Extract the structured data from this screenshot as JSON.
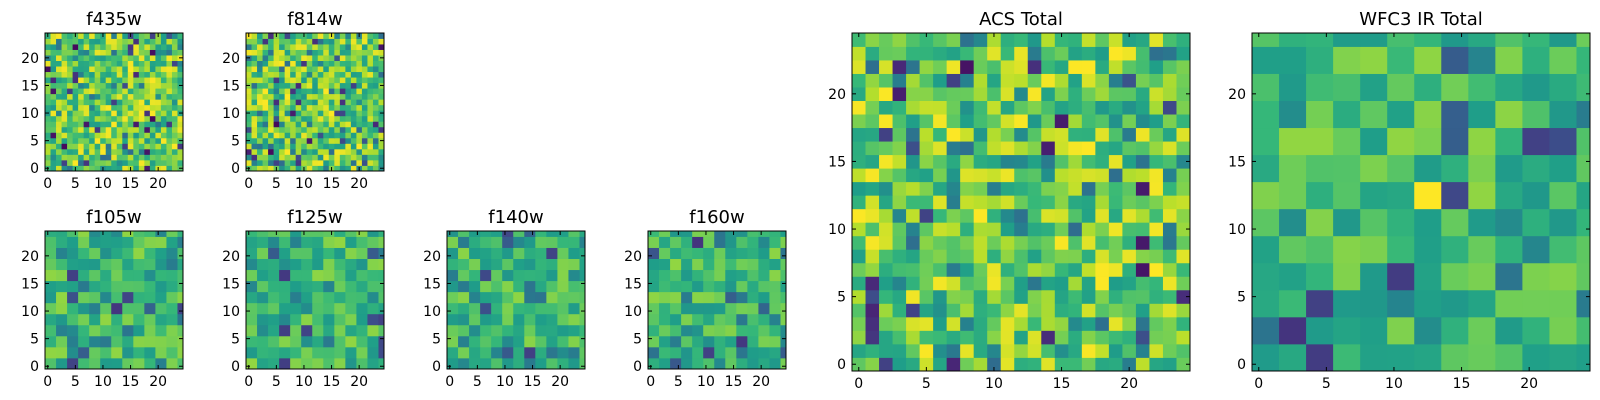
{
  "figure": {
    "title": ""
  },
  "chart_data": [
    {
      "type": "heatmap",
      "title": "f435w",
      "colormap": "viridis",
      "pixel_grid": "1x1",
      "xlim": [
        -0.5,
        24.5
      ],
      "ylim": [
        -0.5,
        24.5
      ],
      "xticks": [
        "0",
        "5",
        "10",
        "15",
        "20"
      ],
      "yticks": [
        "0",
        "5",
        "10",
        "15",
        "20"
      ],
      "seed": 11
    },
    {
      "type": "heatmap",
      "title": "f814w",
      "colormap": "viridis",
      "pixel_grid": "1x1",
      "xlim": [
        -0.5,
        24.5
      ],
      "ylim": [
        -0.5,
        24.5
      ],
      "xticks": [
        "0",
        "5",
        "10",
        "15",
        "20"
      ],
      "yticks": [
        "0",
        "5",
        "10",
        "15",
        "20"
      ],
      "seed": 23
    },
    {
      "type": "heatmap",
      "title": "f105w",
      "colormap": "viridis",
      "pixel_grid": "2x2",
      "xlim": [
        -0.5,
        24.5
      ],
      "ylim": [
        -0.5,
        24.5
      ],
      "xticks": [
        "0",
        "5",
        "10",
        "15",
        "20"
      ],
      "yticks": [
        "0",
        "5",
        "10",
        "15",
        "20"
      ],
      "seed": 37
    },
    {
      "type": "heatmap",
      "title": "f125w",
      "colormap": "viridis",
      "pixel_grid": "2x2",
      "xlim": [
        -0.5,
        24.5
      ],
      "ylim": [
        -0.5,
        24.5
      ],
      "xticks": [
        "0",
        "5",
        "10",
        "15",
        "20"
      ],
      "yticks": [
        "0",
        "5",
        "10",
        "15",
        "20"
      ],
      "seed": 41
    },
    {
      "type": "heatmap",
      "title": "f140w",
      "colormap": "viridis",
      "pixel_grid": "2x2",
      "xlim": [
        -0.5,
        24.5
      ],
      "ylim": [
        -0.5,
        24.5
      ],
      "xticks": [
        "0",
        "5",
        "10",
        "15",
        "20"
      ],
      "yticks": [
        "0",
        "5",
        "10",
        "15",
        "20"
      ],
      "seed": 53
    },
    {
      "type": "heatmap",
      "title": "f160w",
      "colormap": "viridis",
      "pixel_grid": "2x2",
      "xlim": [
        -0.5,
        24.5
      ],
      "ylim": [
        -0.5,
        24.5
      ],
      "xticks": [
        "0",
        "5",
        "10",
        "15",
        "20"
      ],
      "yticks": [
        "0",
        "5",
        "10",
        "15",
        "20"
      ],
      "seed": 67
    },
    {
      "type": "heatmap",
      "title": "ACS Total",
      "colormap": "viridis",
      "pixel_grid": "1x1",
      "xlim": [
        -0.5,
        24.5
      ],
      "ylim": [
        -0.5,
        24.5
      ],
      "xticks": [
        "0",
        "5",
        "10",
        "15",
        "20"
      ],
      "yticks": [
        "0",
        "5",
        "10",
        "15",
        "20"
      ],
      "seed": 79
    },
    {
      "type": "heatmap",
      "title": "WFC3 IR Total",
      "colormap": "viridis",
      "pixel_grid": "2x2",
      "xlim": [
        -0.5,
        24.5
      ],
      "ylim": [
        -0.5,
        24.5
      ],
      "xticks": [
        "0",
        "5",
        "10",
        "15",
        "20"
      ],
      "yticks": [
        "0",
        "5",
        "10",
        "15",
        "20"
      ],
      "seed": 97,
      "features": [
        {
          "label": "bright source",
          "center": [
            12,
            12
          ],
          "value": 1.0
        }
      ]
    }
  ]
}
